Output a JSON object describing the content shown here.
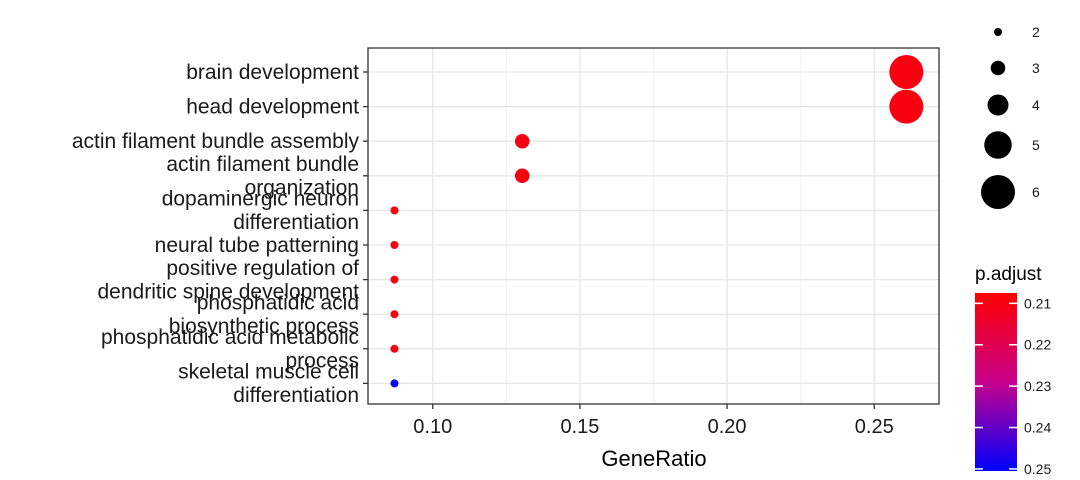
{
  "chart_data": {
    "type": "scatter",
    "xlabel": "GeneRatio",
    "ylabel": "",
    "xlim": [
      0.078,
      0.272
    ],
    "x_ticks": [
      0.1,
      0.15,
      0.2,
      0.25
    ],
    "x_tick_labels": [
      "0.10",
      "0.15",
      "0.20",
      "0.25"
    ],
    "grid": true,
    "categories": [
      [
        "brain development"
      ],
      [
        "head development"
      ],
      [
        "actin filament bundle assembly"
      ],
      [
        "actin filament bundle",
        "organization"
      ],
      [
        "dopaminergic neuron",
        "differentiation"
      ],
      [
        "neural tube patterning"
      ],
      [
        "positive regulation of",
        "dendritic spine development"
      ],
      [
        "phosphatidic acid",
        "biosynthetic process"
      ],
      [
        "phosphatidic acid metabolic",
        "process"
      ],
      [
        "skeletal muscle cell",
        "differentiation"
      ]
    ],
    "points": [
      {
        "term": "brain development",
        "gene_ratio": 0.2609,
        "count": 6,
        "p_adjust": 0.21
      },
      {
        "term": "head development",
        "gene_ratio": 0.2609,
        "count": 6,
        "p_adjust": 0.21
      },
      {
        "term": "actin filament bundle assembly",
        "gene_ratio": 0.1304,
        "count": 3,
        "p_adjust": 0.21
      },
      {
        "term": "actin filament bundle organization",
        "gene_ratio": 0.1304,
        "count": 3,
        "p_adjust": 0.21
      },
      {
        "term": "dopaminergic neuron differentiation",
        "gene_ratio": 0.087,
        "count": 2,
        "p_adjust": 0.21
      },
      {
        "term": "neural tube patterning",
        "gene_ratio": 0.087,
        "count": 2,
        "p_adjust": 0.21
      },
      {
        "term": "positive regulation of dendritic spine development",
        "gene_ratio": 0.087,
        "count": 2,
        "p_adjust": 0.21
      },
      {
        "term": "phosphatidic acid biosynthetic process",
        "gene_ratio": 0.087,
        "count": 2,
        "p_adjust": 0.21
      },
      {
        "term": "phosphatidic acid metabolic process",
        "gene_ratio": 0.087,
        "count": 2,
        "p_adjust": 0.21
      },
      {
        "term": "skeletal muscle cell differentiation",
        "gene_ratio": 0.087,
        "count": 2,
        "p_adjust": 0.25
      }
    ],
    "size_legend": {
      "title": "",
      "values": [
        2,
        3,
        4,
        5,
        6
      ],
      "labels": [
        "2",
        "3",
        "4",
        "5",
        "6"
      ]
    },
    "color_legend": {
      "title": "p.adjust",
      "range": [
        0.2075,
        0.2505
      ],
      "ticks": [
        0.21,
        0.22,
        0.23,
        0.24,
        0.25
      ],
      "labels": [
        "0.21",
        "0.22",
        "0.23",
        "0.24",
        "0.25"
      ],
      "low_color": "#ff0000",
      "mid_color": "#c8008c",
      "high_color": "#0000ff"
    }
  }
}
